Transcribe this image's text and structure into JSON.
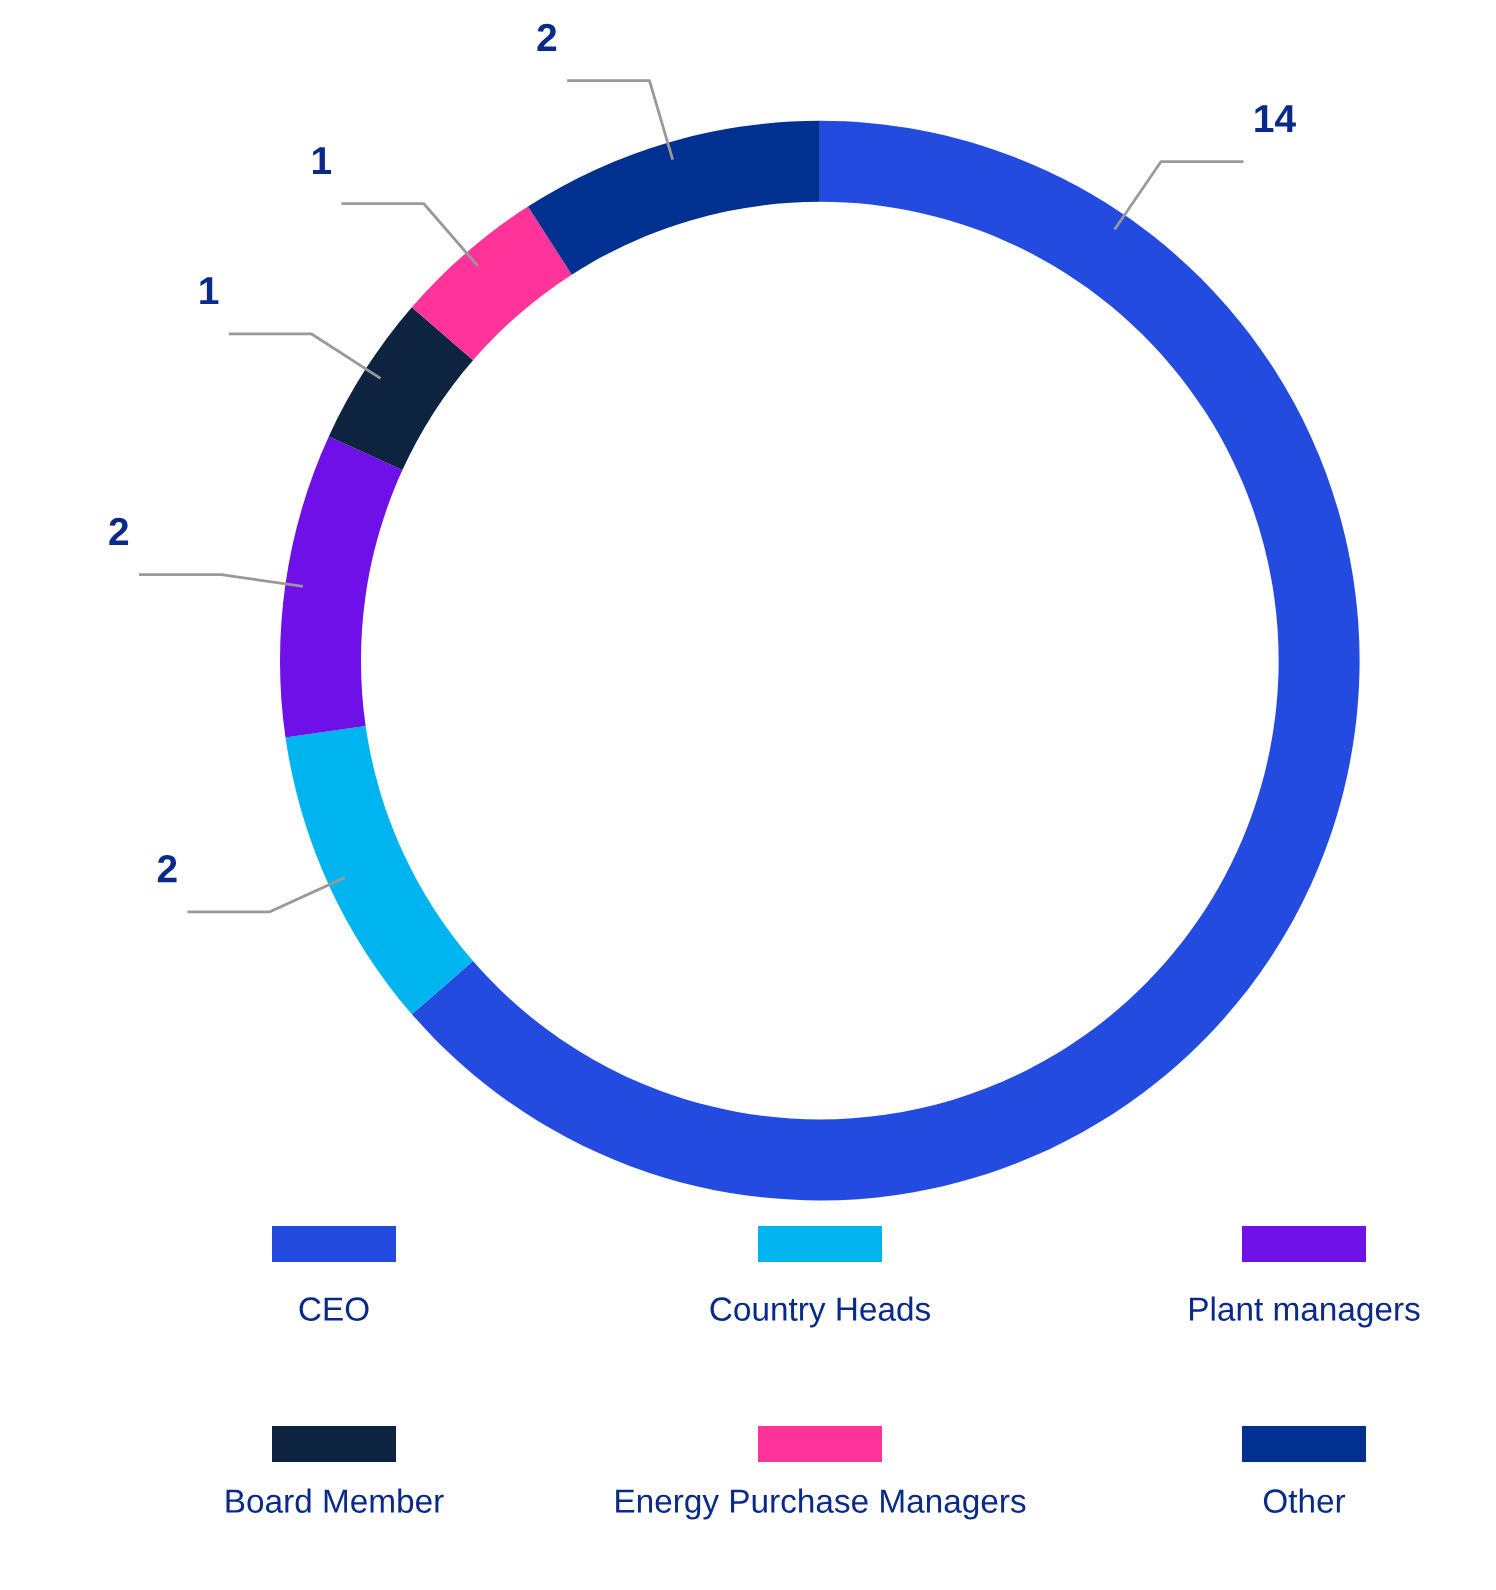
{
  "chart_data": {
    "type": "donut",
    "categories": [
      "CEO",
      "Country Heads",
      "Plant managers",
      "Board Member",
      "Energy Purchase Managers",
      "Other"
    ],
    "values": [
      14,
      2,
      2,
      1,
      1,
      2
    ],
    "colors": [
      "#234be0",
      "#00b4f0",
      "#7010e8",
      "#0d2340",
      "#ff3399",
      "#003090"
    ],
    "data_labels": true,
    "legend": "bottom"
  }
}
